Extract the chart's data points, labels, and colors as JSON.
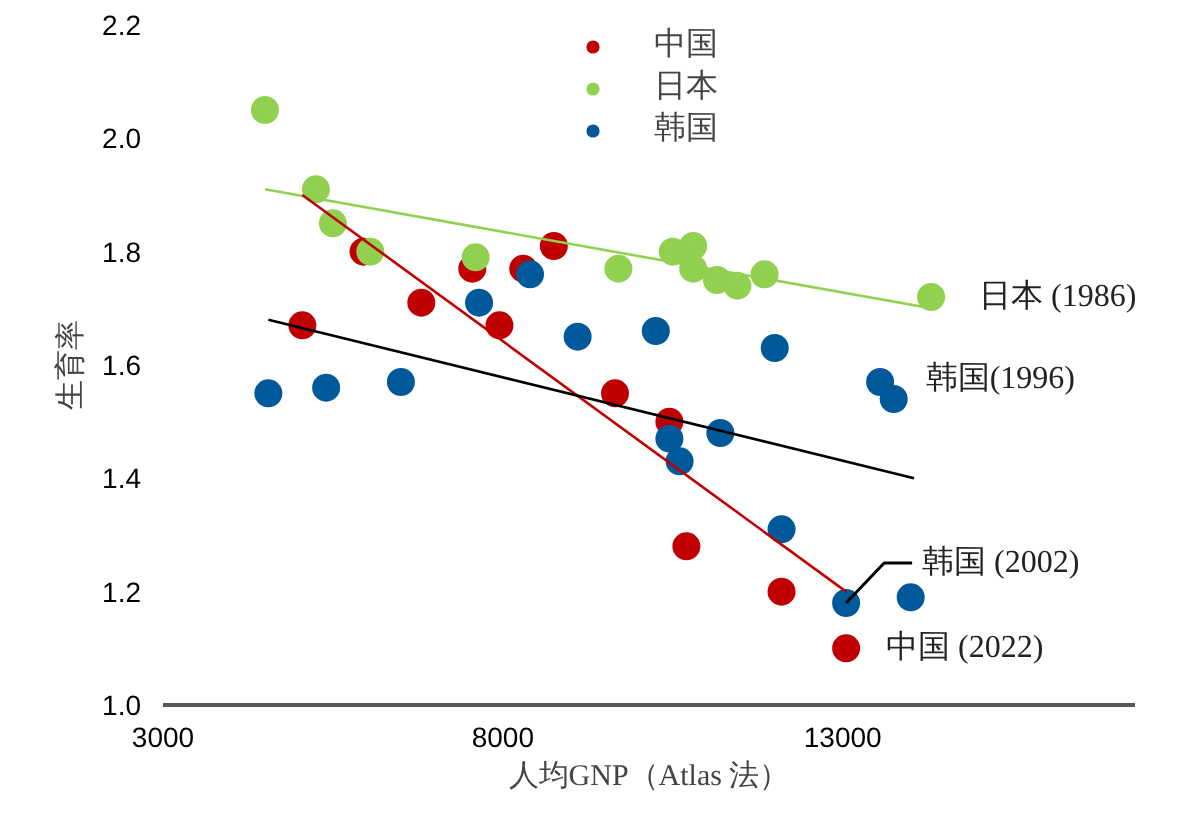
{
  "chart_data": {
    "type": "scatter",
    "xlabel": "人均GNP（Atlas 法）",
    "ylabel": "生育率",
    "xlim": [
      3000,
      17300
    ],
    "xticks": [
      3000,
      8000,
      13000
    ],
    "ylim": [
      1.0,
      2.2
    ],
    "yticks": [
      {
        "value": 1.0,
        "label": "1.0"
      },
      {
        "value": 1.2,
        "label": "1.2"
      },
      {
        "value": 1.4,
        "label": "1.4"
      },
      {
        "value": 1.6,
        "label": "1.6"
      },
      {
        "value": 1.8,
        "label": "1.8"
      },
      {
        "value": 2.0,
        "label": "2.0"
      },
      {
        "value": 2.2,
        "label": "2.2"
      }
    ],
    "grid": false,
    "legend": "top",
    "marker": "circle",
    "series": [
      {
        "name": "中国",
        "color": "#c00000",
        "x": [
          5050,
          5950,
          6800,
          7550,
          7950,
          8300,
          8750,
          9650,
          10450,
          10700,
          12100,
          13050
        ],
        "values": [
          1.67,
          1.8,
          1.71,
          1.77,
          1.67,
          1.77,
          1.81,
          1.55,
          1.5,
          1.28,
          1.2,
          1.1
        ]
      },
      {
        "name": "日本",
        "color": "#92d050",
        "x": [
          4500,
          5250,
          5500,
          6050,
          7600,
          9700,
          10500,
          10800,
          10800,
          11150,
          11450,
          11850,
          14300
        ],
        "values": [
          2.05,
          1.91,
          1.85,
          1.8,
          1.79,
          1.77,
          1.8,
          1.81,
          1.77,
          1.75,
          1.74,
          1.76,
          1.72
        ]
      },
      {
        "name": "韩国",
        "color": "#00599a",
        "x": [
          4550,
          5400,
          6500,
          7650,
          8400,
          9100,
          10250,
          10450,
          10600,
          11200,
          12000,
          12100,
          13050,
          13550,
          13750,
          14000
        ],
        "values": [
          1.55,
          1.56,
          1.57,
          1.71,
          1.76,
          1.65,
          1.66,
          1.47,
          1.43,
          1.48,
          1.63,
          1.31,
          1.18,
          1.57,
          1.54,
          1.19
        ]
      },
      {
        "type": "line",
        "marker": "none",
        "color": "#92d050",
        "x": [
          4500,
          14300
        ],
        "values": [
          1.91,
          1.7
        ]
      },
      {
        "type": "line",
        "marker": "none",
        "color": "#c00000",
        "x": [
          5050,
          13050
        ],
        "values": [
          1.9,
          1.2
        ]
      },
      {
        "type": "line",
        "marker": "none",
        "color": "#000000",
        "x": [
          4550,
          14050
        ],
        "values": [
          1.68,
          1.4
        ]
      }
    ],
    "annotations": [
      {
        "text": "日本 (1986)",
        "x": 14300,
        "y": 1.72
      },
      {
        "text": "韩国(1996)",
        "x": 13750,
        "y": 1.54
      },
      {
        "text": "韩国 (2002)",
        "x": 13050,
        "y": 1.18
      },
      {
        "text": "中国 (2022)",
        "x": 13050,
        "y": 1.1
      }
    ]
  }
}
